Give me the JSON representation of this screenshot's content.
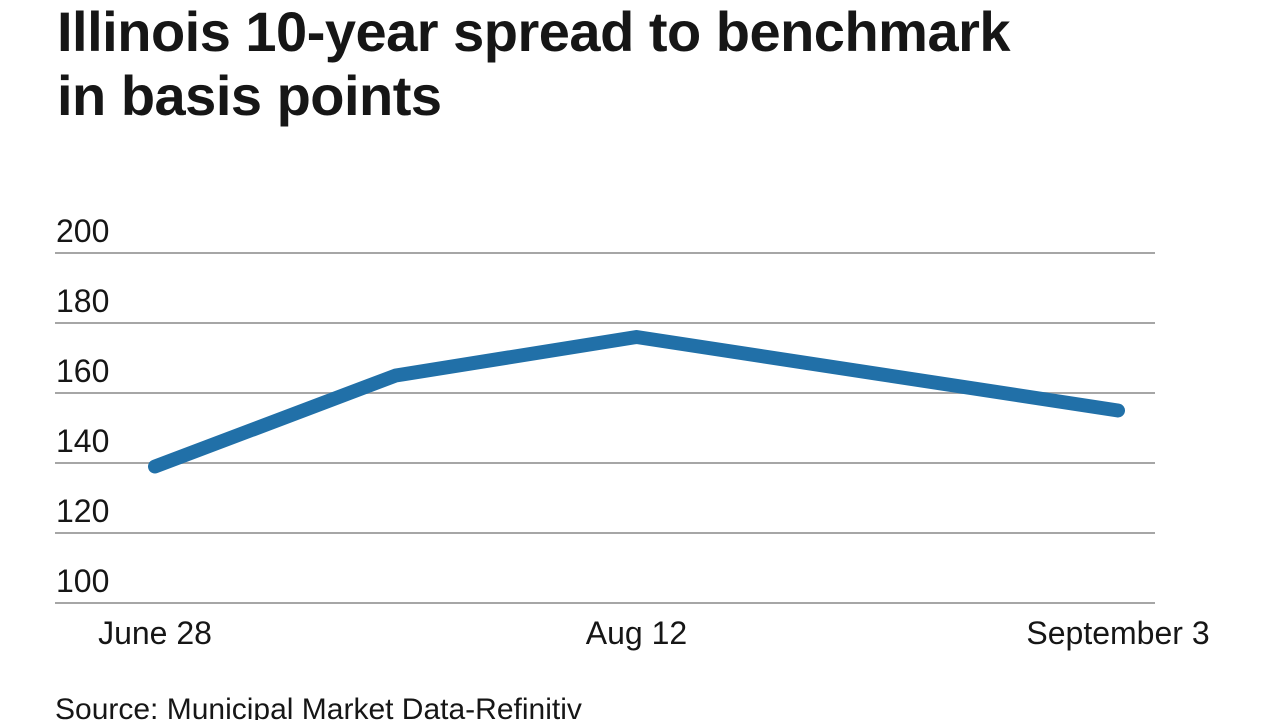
{
  "colors": {
    "line": "#2170A8",
    "gridline": "#a6a6a6",
    "text": "#161616",
    "background": "#ffffff"
  },
  "title": {
    "text": "Illinois 10-year spread to benchmark in basis points",
    "lines": [
      "Illinois 10-year spread to benchmark",
      "in basis points"
    ]
  },
  "source": {
    "text": "Source: Municipal Market Data-Refinitiv"
  },
  "chart_data": {
    "type": "line",
    "title": "Illinois 10-year spread to benchmark in basis points",
    "unit": "basis points",
    "x_tick_labels": [
      "June 28",
      "Aug 12",
      "September 3"
    ],
    "x_ticks": [
      {
        "label": "June 28",
        "frac": 0
      },
      {
        "label": "Aug 12",
        "frac": 0.5
      },
      {
        "label": "September 3",
        "frac": 1
      }
    ],
    "y_ticks": [
      200,
      180,
      160,
      140,
      120,
      100
    ],
    "ylim": [
      100,
      200
    ],
    "grid": "horizontal-only",
    "legend": "none",
    "series": [
      {
        "name": "Illinois 10-year spread to benchmark (bp)",
        "color": "#2170A8",
        "points": [
          {
            "x_label": "June 28",
            "frac": 0,
            "value": 139
          },
          {
            "x_label": "",
            "frac": 0.25,
            "value": 165
          },
          {
            "x_label": "Aug 12",
            "frac": 0.5,
            "value": 176
          },
          {
            "x_label": "September 3",
            "frac": 1,
            "value": 155
          }
        ]
      }
    ],
    "source": "Source: Municipal Market Data-Refinitiv"
  }
}
